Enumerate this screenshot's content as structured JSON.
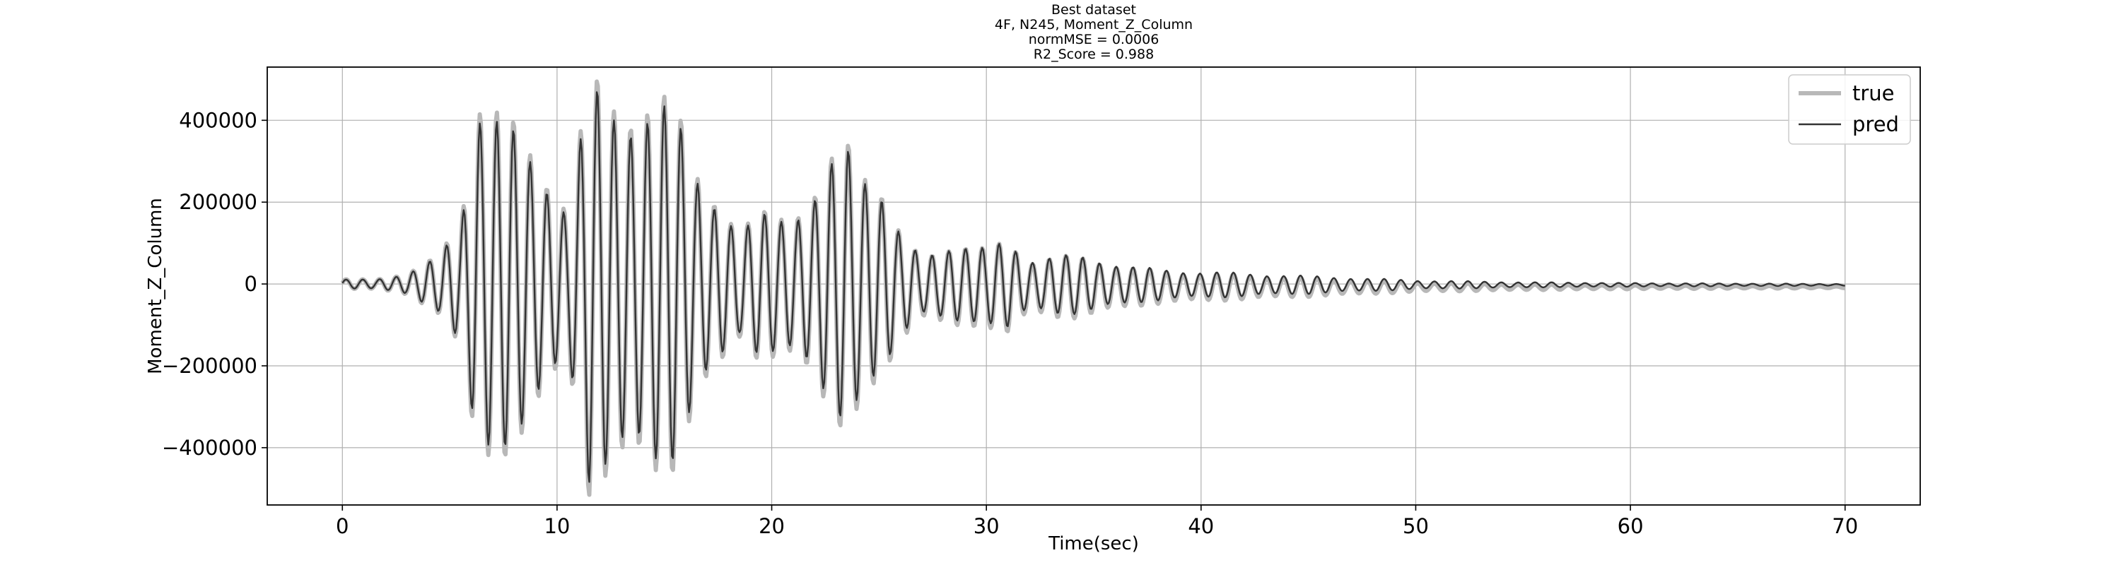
{
  "chart_data": {
    "type": "line",
    "title_lines": [
      "Best dataset",
      "4F, N245, Moment_Z_Column",
      "normMSE = 0.0006",
      "R2_Score = 0.988"
    ],
    "xlabel": "Time(sec)",
    "ylabel": "Moment_Z_Column",
    "xlim": [
      -3.5,
      73.5
    ],
    "ylim": [
      -540000,
      530000
    ],
    "x_ticks": [
      0,
      10,
      20,
      30,
      40,
      50,
      60,
      70
    ],
    "x_tick_labels": [
      "0",
      "10",
      "20",
      "30",
      "40",
      "50",
      "60",
      "70"
    ],
    "y_ticks": [
      400000,
      200000,
      0,
      -200000,
      -400000
    ],
    "y_tick_labels": [
      "400000",
      "200000",
      "0",
      "−200000",
      "−400000"
    ],
    "grid": true,
    "legend_position": "top-right",
    "x_range": [
      0,
      70
    ],
    "sample_step": 0.05,
    "envelope_points": [
      [
        0,
        10000
      ],
      [
        1.5,
        10000
      ],
      [
        3,
        25000
      ],
      [
        4.5,
        60000
      ],
      [
        5.5,
        140000
      ],
      [
        6.3,
        450000
      ],
      [
        7.5,
        370000
      ],
      [
        8.5,
        300000
      ],
      [
        9.5,
        250000
      ],
      [
        10.5,
        180000
      ],
      [
        11.5,
        440000
      ],
      [
        12.5,
        400000
      ],
      [
        13.5,
        410000
      ],
      [
        14.5,
        420000
      ],
      [
        15.5,
        380000
      ],
      [
        16.5,
        260000
      ],
      [
        17.5,
        200000
      ],
      [
        18.5,
        110000
      ],
      [
        19.5,
        160000
      ],
      [
        21,
        170000
      ],
      [
        22,
        200000
      ],
      [
        23.5,
        320000
      ],
      [
        25,
        240000
      ],
      [
        26,
        110000
      ],
      [
        27,
        60000
      ],
      [
        28.5,
        100000
      ],
      [
        30,
        80000
      ],
      [
        31,
        100000
      ],
      [
        32,
        60000
      ],
      [
        33,
        65000
      ],
      [
        34,
        65000
      ],
      [
        35,
        60000
      ],
      [
        36,
        50000
      ],
      [
        37,
        40000
      ],
      [
        38,
        35000
      ],
      [
        40,
        30000
      ],
      [
        45,
        20000
      ],
      [
        50,
        10000
      ],
      [
        55,
        6000
      ],
      [
        60,
        4000
      ],
      [
        70,
        2000
      ]
    ],
    "series": [
      {
        "name": "true",
        "color": "#b8b8b8",
        "width": 6,
        "period_sec": 0.78,
        "phase": 0.2,
        "offset_start": 0,
        "offset_end": -8000,
        "amp_scale": 1.06
      },
      {
        "name": "pred",
        "color": "#333333",
        "width": 2.4,
        "period_sec": 0.78,
        "phase": 0.2,
        "offset_start": 0,
        "offset_end": -2000,
        "amp_scale": 1.0
      }
    ]
  }
}
